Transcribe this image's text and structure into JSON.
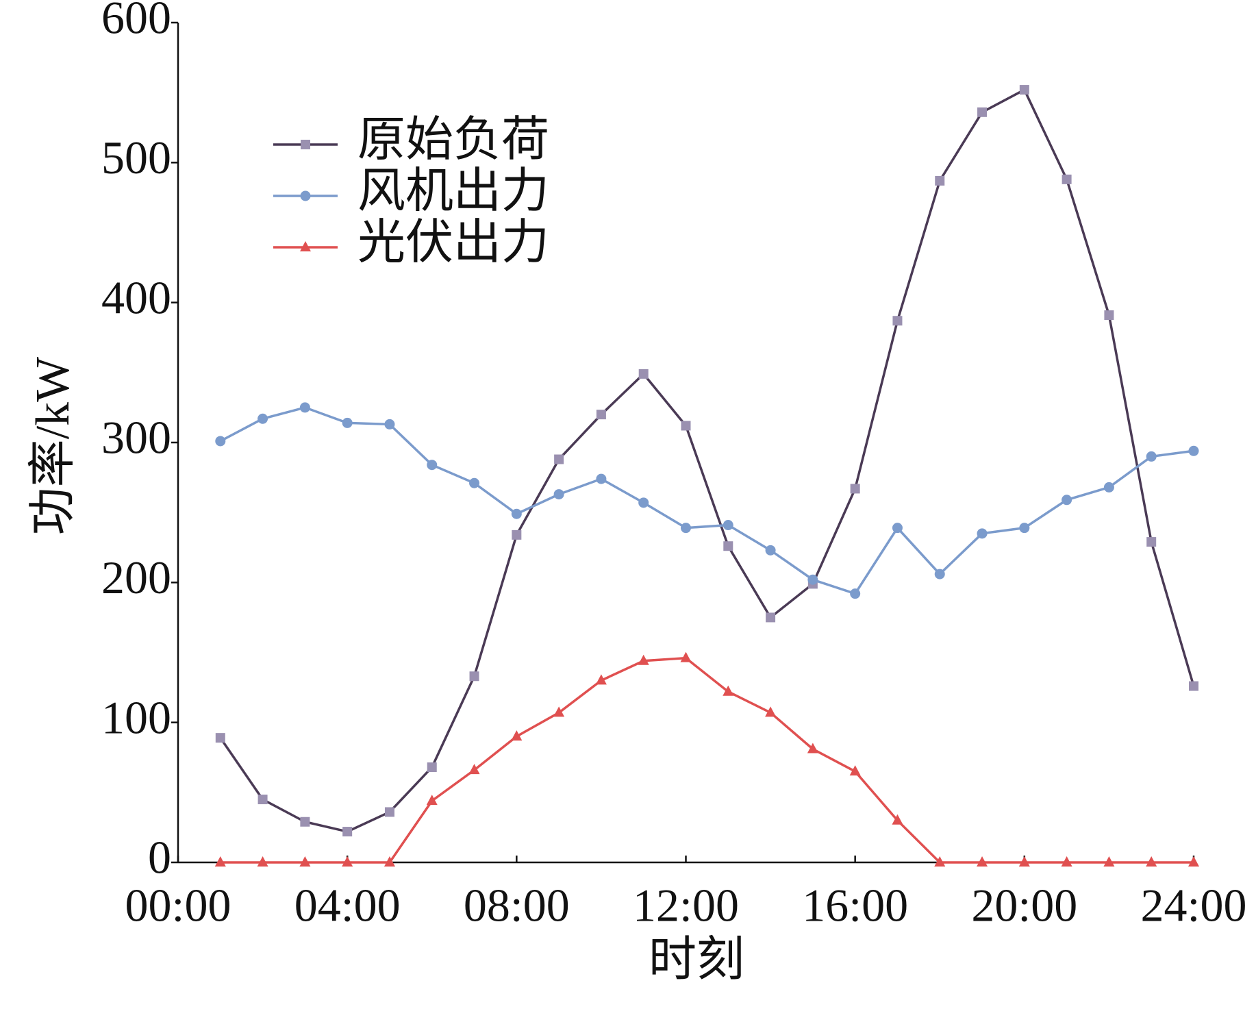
{
  "chart_data": {
    "type": "line",
    "x_label": "时刻",
    "y_label": "功率/kW",
    "x": [
      1,
      2,
      3,
      4,
      5,
      6,
      7,
      8,
      9,
      10,
      11,
      12,
      13,
      14,
      15,
      16,
      17,
      18,
      19,
      20,
      21,
      22,
      23,
      24
    ],
    "xlim": [
      0,
      24
    ],
    "xticks": [
      {
        "value": 0,
        "label": "00:00"
      },
      {
        "value": 4,
        "label": "04:00"
      },
      {
        "value": 8,
        "label": "08:00"
      },
      {
        "value": 12,
        "label": "12:00"
      },
      {
        "value": 16,
        "label": "16:00"
      },
      {
        "value": 20,
        "label": "20:00"
      },
      {
        "value": 24,
        "label": "24:00"
      }
    ],
    "ylim": [
      0,
      600
    ],
    "yticks": [
      0,
      100,
      200,
      300,
      400,
      500,
      600
    ],
    "legend": "upper left",
    "series": [
      {
        "name": "原始负荷",
        "color": "#4a3a55",
        "marker_color": "#9a90b0",
        "marker": "square",
        "values": [
          89,
          45,
          29,
          22,
          36,
          68,
          133,
          234,
          288,
          320,
          349,
          312,
          226,
          175,
          199,
          267,
          387,
          487,
          536,
          552,
          488,
          391,
          229,
          126
        ]
      },
      {
        "name": "风机出力",
        "color": "#7b9bcc",
        "marker_color": "#7b9bcc",
        "marker": "circle",
        "values": [
          301,
          317,
          325,
          314,
          313,
          284,
          271,
          249,
          263,
          274,
          257,
          239,
          241,
          223,
          202,
          192,
          239,
          206,
          235,
          239,
          259,
          268,
          290,
          294
        ]
      },
      {
        "name": "光伏出力",
        "color": "#e05050",
        "marker_color": "#e05050",
        "marker": "triangle",
        "values": [
          0,
          0,
          0,
          0,
          0,
          44,
          66,
          90,
          107,
          130,
          144,
          146,
          122,
          107,
          81,
          65,
          30,
          0,
          0,
          0,
          0,
          0,
          0,
          0
        ]
      }
    ]
  }
}
